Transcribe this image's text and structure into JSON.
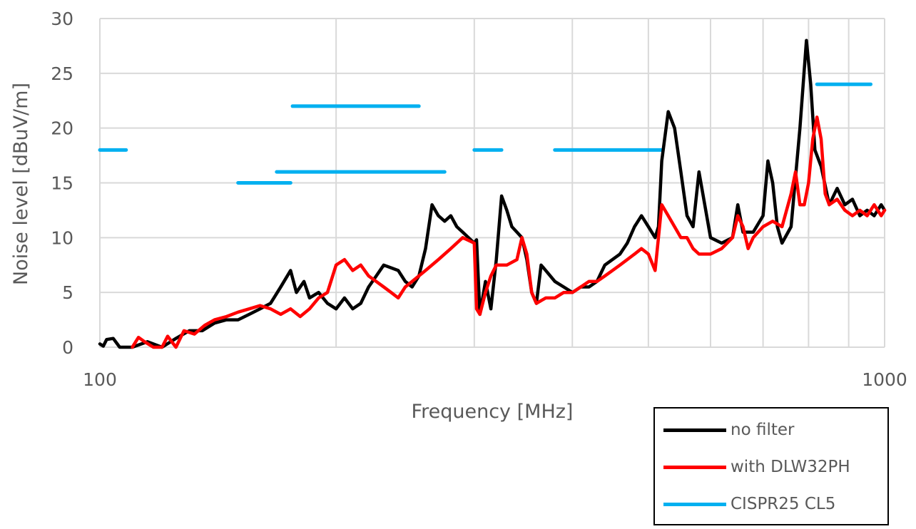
{
  "chart_data": {
    "type": "line",
    "title": "",
    "xlabel": "Frequency [MHz]",
    "ylabel": "Noise level [dBuV/m]",
    "x_scale": "log",
    "xlim": [
      100,
      1000
    ],
    "ylim": [
      0,
      30
    ],
    "x_tick_labels": [
      "100",
      "1000"
    ],
    "y_ticks": [
      0,
      5,
      10,
      15,
      20,
      25,
      30
    ],
    "grid": true,
    "legend_position": "bottom-right",
    "series": [
      {
        "name": "no filter",
        "color": "#000000",
        "points": [
          [
            100,
            0.3
          ],
          [
            101,
            0.1
          ],
          [
            102,
            0.7
          ],
          [
            104,
            0.8
          ],
          [
            106,
            0
          ],
          [
            110,
            0
          ],
          [
            115,
            0.5
          ],
          [
            120,
            0
          ],
          [
            125,
            0.8
          ],
          [
            130,
            1.5
          ],
          [
            135,
            1.5
          ],
          [
            140,
            2.2
          ],
          [
            145,
            2.5
          ],
          [
            150,
            2.5
          ],
          [
            155,
            3.0
          ],
          [
            160,
            3.5
          ],
          [
            165,
            4.0
          ],
          [
            170,
            5.5
          ],
          [
            175,
            7.0
          ],
          [
            178,
            5.0
          ],
          [
            182,
            6.0
          ],
          [
            185,
            4.5
          ],
          [
            190,
            5.0
          ],
          [
            195,
            4.0
          ],
          [
            200,
            3.5
          ],
          [
            205,
            4.5
          ],
          [
            210,
            3.5
          ],
          [
            215,
            4.0
          ],
          [
            220,
            5.5
          ],
          [
            225,
            6.5
          ],
          [
            230,
            7.5
          ],
          [
            240,
            7.0
          ],
          [
            245,
            6.0
          ],
          [
            250,
            5.5
          ],
          [
            255,
            6.5
          ],
          [
            260,
            9.0
          ],
          [
            265,
            13.0
          ],
          [
            270,
            12.0
          ],
          [
            275,
            11.5
          ],
          [
            280,
            12.0
          ],
          [
            285,
            11.0
          ],
          [
            290,
            10.5
          ],
          [
            300,
            9.5
          ],
          [
            302,
            9.8
          ],
          [
            305,
            3.0
          ],
          [
            310,
            6.0
          ],
          [
            315,
            3.5
          ],
          [
            320,
            8.0
          ],
          [
            325,
            13.8
          ],
          [
            330,
            12.5
          ],
          [
            335,
            11.0
          ],
          [
            340,
            10.5
          ],
          [
            345,
            10.0
          ],
          [
            350,
            8.0
          ],
          [
            355,
            5.0
          ],
          [
            360,
            4.0
          ],
          [
            365,
            7.5
          ],
          [
            370,
            7.0
          ],
          [
            380,
            6.0
          ],
          [
            390,
            5.5
          ],
          [
            400,
            5.0
          ],
          [
            410,
            5.5
          ],
          [
            420,
            5.5
          ],
          [
            430,
            6.0
          ],
          [
            440,
            7.5
          ],
          [
            450,
            8.0
          ],
          [
            460,
            8.5
          ],
          [
            470,
            9.5
          ],
          [
            480,
            11.0
          ],
          [
            490,
            12.0
          ],
          [
            500,
            11.0
          ],
          [
            510,
            10.0
          ],
          [
            515,
            11.0
          ],
          [
            520,
            17.0
          ],
          [
            530,
            21.5
          ],
          [
            540,
            20.0
          ],
          [
            550,
            16.0
          ],
          [
            560,
            12.0
          ],
          [
            570,
            11.0
          ],
          [
            580,
            16.0
          ],
          [
            590,
            13.0
          ],
          [
            600,
            10.0
          ],
          [
            620,
            9.5
          ],
          [
            640,
            10.0
          ],
          [
            650,
            13.0
          ],
          [
            660,
            10.5
          ],
          [
            680,
            10.5
          ],
          [
            700,
            12.0
          ],
          [
            710,
            17.0
          ],
          [
            720,
            15.0
          ],
          [
            730,
            11.0
          ],
          [
            740,
            9.5
          ],
          [
            760,
            11.0
          ],
          [
            780,
            20.0
          ],
          [
            795,
            28.0
          ],
          [
            805,
            24.0
          ],
          [
            815,
            18.0
          ],
          [
            830,
            16.5
          ],
          [
            850,
            13.0
          ],
          [
            870,
            14.5
          ],
          [
            890,
            13.0
          ],
          [
            910,
            13.5
          ],
          [
            930,
            12.0
          ],
          [
            950,
            12.5
          ],
          [
            970,
            12.0
          ],
          [
            990,
            13.0
          ],
          [
            1000,
            12.5
          ]
        ]
      },
      {
        "name": "with DLW32PH",
        "color": "#ff0000",
        "points": [
          [
            110,
            0
          ],
          [
            112,
            0.9
          ],
          [
            114,
            0.5
          ],
          [
            117,
            0
          ],
          [
            120,
            0
          ],
          [
            122,
            1.0
          ],
          [
            125,
            0
          ],
          [
            128,
            1.5
          ],
          [
            132,
            1.2
          ],
          [
            136,
            2.0
          ],
          [
            140,
            2.5
          ],
          [
            145,
            2.8
          ],
          [
            150,
            3.2
          ],
          [
            155,
            3.5
          ],
          [
            160,
            3.8
          ],
          [
            165,
            3.5
          ],
          [
            170,
            3.0
          ],
          [
            175,
            3.5
          ],
          [
            180,
            2.8
          ],
          [
            185,
            3.5
          ],
          [
            190,
            4.5
          ],
          [
            195,
            5.0
          ],
          [
            200,
            7.5
          ],
          [
            205,
            8.0
          ],
          [
            210,
            7.0
          ],
          [
            215,
            7.5
          ],
          [
            220,
            6.5
          ],
          [
            225,
            6.0
          ],
          [
            230,
            5.5
          ],
          [
            235,
            5.0
          ],
          [
            240,
            4.5
          ],
          [
            245,
            5.5
          ],
          [
            250,
            6.0
          ],
          [
            260,
            7.0
          ],
          [
            270,
            8.0
          ],
          [
            280,
            9.0
          ],
          [
            290,
            10.0
          ],
          [
            300,
            9.5
          ],
          [
            302,
            3.5
          ],
          [
            305,
            3.0
          ],
          [
            310,
            5.0
          ],
          [
            315,
            6.5
          ],
          [
            320,
            7.5
          ],
          [
            330,
            7.5
          ],
          [
            340,
            8.0
          ],
          [
            345,
            10.0
          ],
          [
            350,
            8.5
          ],
          [
            355,
            5.0
          ],
          [
            360,
            4.0
          ],
          [
            370,
            4.5
          ],
          [
            380,
            4.5
          ],
          [
            390,
            5.0
          ],
          [
            400,
            5.0
          ],
          [
            410,
            5.5
          ],
          [
            420,
            6.0
          ],
          [
            430,
            6.0
          ],
          [
            440,
            6.5
          ],
          [
            450,
            7.0
          ],
          [
            460,
            7.5
          ],
          [
            470,
            8.0
          ],
          [
            480,
            8.5
          ],
          [
            490,
            9.0
          ],
          [
            500,
            8.5
          ],
          [
            510,
            7.0
          ],
          [
            515,
            10.0
          ],
          [
            520,
            13.0
          ],
          [
            530,
            12.0
          ],
          [
            540,
            11.0
          ],
          [
            550,
            10.0
          ],
          [
            560,
            10.0
          ],
          [
            570,
            9.0
          ],
          [
            580,
            8.5
          ],
          [
            600,
            8.5
          ],
          [
            620,
            9.0
          ],
          [
            640,
            10.0
          ],
          [
            650,
            12.0
          ],
          [
            660,
            11.0
          ],
          [
            670,
            9.0
          ],
          [
            680,
            10.0
          ],
          [
            700,
            11.0
          ],
          [
            720,
            11.5
          ],
          [
            740,
            11.0
          ],
          [
            760,
            14.0
          ],
          [
            770,
            16.0
          ],
          [
            780,
            13.0
          ],
          [
            790,
            13.0
          ],
          [
            800,
            15.0
          ],
          [
            810,
            19.0
          ],
          [
            820,
            21.0
          ],
          [
            830,
            19.0
          ],
          [
            840,
            14.0
          ],
          [
            850,
            13.0
          ],
          [
            870,
            13.5
          ],
          [
            890,
            12.5
          ],
          [
            910,
            12.0
          ],
          [
            930,
            12.5
          ],
          [
            950,
            12.0
          ],
          [
            970,
            13.0
          ],
          [
            990,
            12.0
          ],
          [
            1000,
            12.5
          ]
        ]
      },
      {
        "name": "CISPR25 CL5",
        "color": "#00b0f0",
        "segments": [
          {
            "x": [
              100,
              108
            ],
            "y": 18
          },
          {
            "x": [
              150,
              175
            ],
            "y": 15
          },
          {
            "x": [
              176,
              255
            ],
            "y": 22
          },
          {
            "x": [
              168,
              275
            ],
            "y": 16
          },
          {
            "x": [
              300,
              325
            ],
            "y": 18
          },
          {
            "x": [
              380,
              520
            ],
            "y": 18
          },
          {
            "x": [
              820,
              960
            ],
            "y": 24
          }
        ]
      }
    ]
  }
}
